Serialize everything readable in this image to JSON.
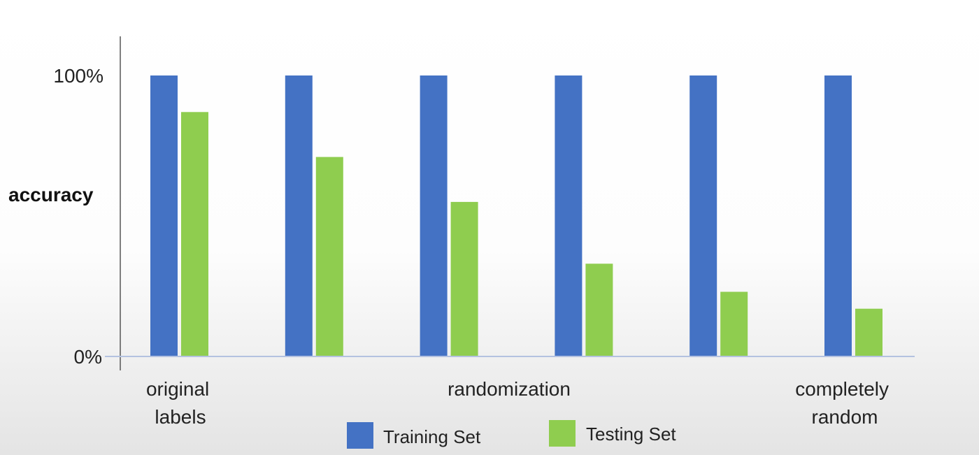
{
  "chart_data": {
    "type": "bar",
    "title": "",
    "ylabel": "accuracy",
    "ylim": [
      0,
      100
    ],
    "y_ticks": [
      "100%",
      "0%"
    ],
    "categories": [
      "1",
      "2",
      "3",
      "4",
      "5",
      "6"
    ],
    "category_labels": [
      {
        "lines": [
          "original",
          "labels"
        ]
      },
      {
        "lines": [
          "randomization"
        ]
      },
      {
        "lines": [
          "completely",
          "random"
        ]
      }
    ],
    "series": [
      {
        "name": "Training Set",
        "color": "#4472c4",
        "values": [
          100,
          100,
          100,
          100,
          100,
          100
        ]
      },
      {
        "name": "Testing Set",
        "color": "#8fcd4f",
        "values": [
          87,
          71,
          55,
          33,
          23,
          17
        ]
      }
    ],
    "grid": false,
    "legend": "bottom"
  }
}
